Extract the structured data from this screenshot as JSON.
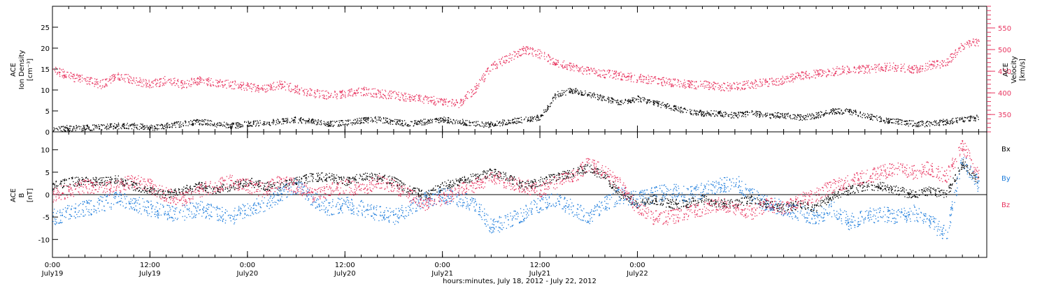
{
  "chart_data": [
    {
      "type": "scatter",
      "panel": "top",
      "ylabel_left": [
        "ACE",
        "Ion Density",
        "[cm⁻³]"
      ],
      "ylabel_right": [
        "ACE",
        "Velocity",
        "[km/s]"
      ],
      "ylim_left": [
        0,
        30
      ],
      "yticks_left": [
        0,
        5,
        10,
        15,
        20,
        25
      ],
      "ylim_right": [
        310,
        600
      ],
      "yticks_right": [
        350,
        400,
        450,
        500,
        550
      ],
      "series": [
        {
          "axis": "left",
          "color": "#000000",
          "x": [
            0,
            2,
            4,
            6,
            8,
            10,
            12,
            14,
            16,
            18,
            20,
            22,
            24,
            26,
            28,
            30,
            32,
            34,
            36,
            38,
            40,
            42,
            44,
            46,
            48,
            50,
            52,
            54,
            56,
            58,
            60,
            62,
            64,
            66,
            68,
            70,
            72,
            74,
            76,
            78,
            80,
            82,
            84,
            86,
            88,
            90,
            92,
            94,
            96,
            98,
            100,
            102,
            104,
            106,
            108,
            110,
            112,
            114
          ],
          "y": [
            0.5,
            1,
            1,
            1.2,
            1.5,
            1.5,
            1,
            1.5,
            2,
            2.5,
            2,
            1.5,
            2,
            2.2,
            2.5,
            3,
            2.5,
            2,
            2.2,
            2.8,
            3,
            2.5,
            2,
            2.5,
            3,
            2.5,
            2,
            1.8,
            2.5,
            3,
            3.5,
            9,
            10,
            9,
            8,
            7,
            8,
            7,
            6,
            5,
            4.5,
            4.5,
            4,
            4.5,
            4,
            4,
            3.5,
            4,
            5,
            5,
            4,
            3,
            2.5,
            2,
            2,
            2.5,
            3,
            3.5
          ]
        },
        {
          "axis": "right",
          "color": "#e8345f",
          "x": [
            0,
            2,
            4,
            6,
            8,
            10,
            12,
            14,
            16,
            18,
            20,
            22,
            24,
            26,
            28,
            30,
            32,
            34,
            36,
            38,
            40,
            42,
            44,
            46,
            48,
            50,
            52,
            54,
            56,
            58,
            60,
            62,
            64,
            66,
            68,
            70,
            72,
            74,
            76,
            78,
            80,
            82,
            84,
            86,
            88,
            90,
            92,
            94,
            96,
            98,
            100,
            102,
            104,
            106,
            108,
            110,
            112,
            114
          ],
          "y": [
            455,
            440,
            430,
            420,
            440,
            430,
            420,
            430,
            420,
            430,
            425,
            420,
            415,
            410,
            420,
            410,
            400,
            395,
            400,
            405,
            400,
            395,
            390,
            385,
            380,
            375,
            410,
            460,
            480,
            500,
            490,
            470,
            460,
            450,
            445,
            440,
            435,
            430,
            425,
            420,
            420,
            415,
            415,
            420,
            425,
            430,
            440,
            445,
            450,
            455,
            455,
            460,
            460,
            455,
            465,
            470,
            510,
            520
          ]
        }
      ]
    },
    {
      "type": "scatter",
      "panel": "bottom",
      "ylabel": [
        "ACE",
        "B",
        "[nT]"
      ],
      "ylim": [
        -14,
        14
      ],
      "yticks": [
        -10,
        -5,
        0,
        5,
        10
      ],
      "series": [
        {
          "name": "Bx",
          "color": "#000000",
          "x": [
            0,
            2,
            4,
            6,
            8,
            10,
            12,
            14,
            16,
            18,
            20,
            22,
            24,
            26,
            28,
            30,
            32,
            34,
            36,
            38,
            40,
            42,
            44,
            46,
            48,
            50,
            52,
            54,
            56,
            58,
            60,
            62,
            64,
            66,
            68,
            70,
            72,
            74,
            76,
            78,
            80,
            82,
            84,
            86,
            88,
            90,
            92,
            94,
            96,
            98,
            100,
            102,
            104,
            106,
            108,
            110,
            112,
            114
          ],
          "y": [
            2,
            3,
            3,
            3,
            3.5,
            2,
            1,
            0,
            1,
            2,
            1,
            2,
            3,
            2,
            2,
            3,
            4,
            4,
            3,
            4,
            4,
            3,
            1,
            0,
            2,
            3,
            4,
            5,
            4,
            2,
            3,
            4,
            5,
            6,
            4,
            0,
            -2,
            -1,
            -2,
            -2,
            -1,
            -2,
            -2,
            -1,
            -2,
            -3,
            -2,
            -3,
            0,
            1,
            2,
            2,
            1,
            0,
            1,
            0,
            7,
            3
          ]
        },
        {
          "name": "By",
          "color": "#1e7ddc",
          "x": [
            0,
            2,
            4,
            6,
            8,
            10,
            12,
            14,
            16,
            18,
            20,
            22,
            24,
            26,
            28,
            30,
            32,
            34,
            36,
            38,
            40,
            42,
            44,
            46,
            48,
            50,
            52,
            54,
            56,
            58,
            60,
            62,
            64,
            66,
            68,
            70,
            72,
            74,
            76,
            78,
            80,
            82,
            84,
            86,
            88,
            90,
            92,
            94,
            96,
            98,
            100,
            102,
            104,
            106,
            108,
            110,
            112,
            114
          ],
          "y": [
            -5,
            -4,
            -3,
            -2,
            -1,
            -2,
            -3,
            -4,
            -4,
            -3,
            -4,
            -5,
            -3,
            -2,
            0,
            2,
            -1,
            -3,
            -2,
            -3,
            -4,
            -5,
            -3,
            -1,
            0,
            -1,
            -2,
            -7,
            -6,
            -4,
            -2,
            -1,
            -3,
            -5,
            -2,
            0,
            -1,
            0,
            1,
            0,
            1,
            2,
            3,
            0,
            -2,
            -3,
            -4,
            -5,
            -3,
            -6,
            -5,
            -4,
            -5,
            -4,
            -6,
            -9,
            8,
            2
          ]
        },
        {
          "name": "Bz",
          "color": "#e8345f",
          "x": [
            0,
            2,
            4,
            6,
            8,
            10,
            12,
            14,
            16,
            18,
            20,
            22,
            24,
            26,
            28,
            30,
            32,
            34,
            36,
            38,
            40,
            42,
            44,
            46,
            48,
            50,
            52,
            54,
            56,
            58,
            60,
            62,
            64,
            66,
            68,
            70,
            72,
            74,
            76,
            78,
            80,
            82,
            84,
            86,
            88,
            90,
            92,
            94,
            96,
            98,
            100,
            102,
            104,
            106,
            108,
            110,
            112,
            114
          ],
          "y": [
            0,
            1,
            2,
            1,
            2,
            3,
            2,
            0,
            -1,
            1,
            2,
            3,
            2,
            1,
            3,
            2,
            0,
            1,
            2,
            1,
            3,
            2,
            0,
            -2,
            -1,
            1,
            2,
            4,
            3,
            2,
            1,
            3,
            4,
            7,
            5,
            2,
            -3,
            -5,
            -5,
            -4,
            -3,
            -2,
            -3,
            -4,
            -2,
            -3,
            -1,
            0,
            2,
            3,
            4,
            5,
            6,
            5,
            6,
            4,
            11,
            4
          ]
        }
      ]
    }
  ],
  "x_axis": {
    "range_hours": [
      0,
      115
    ],
    "ticks": [
      {
        "h": 0,
        "time": "0:00",
        "date": "July19"
      },
      {
        "h": 12,
        "time": "12:00",
        "date": "July19"
      },
      {
        "h": 24,
        "time": "0:00",
        "date": "July20"
      },
      {
        "h": 36,
        "time": "12:00",
        "date": "July20"
      },
      {
        "h": 48,
        "time": "0:00",
        "date": "July21"
      },
      {
        "h": 60,
        "time": "12:00",
        "date": "July21"
      },
      {
        "h": 72,
        "time": "0:00",
        "date": "July22"
      }
    ],
    "xlabel": "hours:minutes, July 18, 2012 - July 22, 2012"
  }
}
